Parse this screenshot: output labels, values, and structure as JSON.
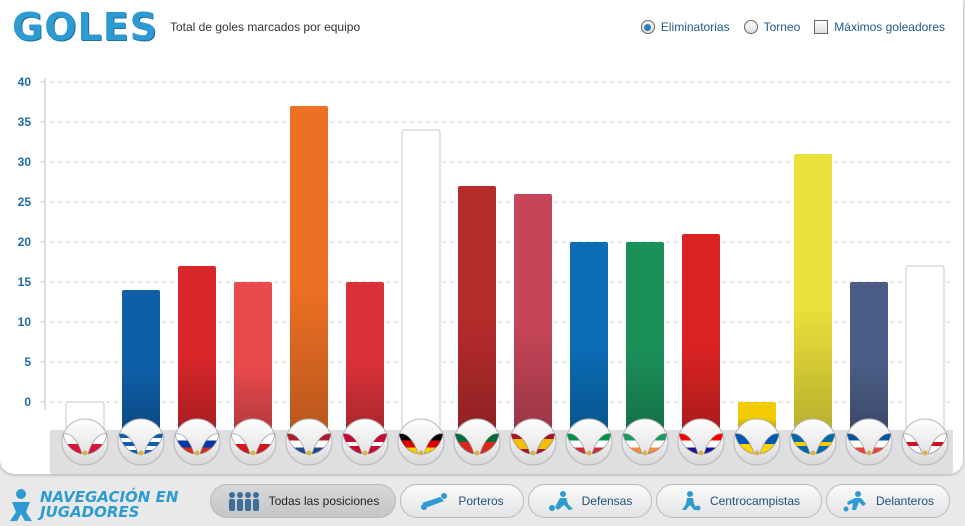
{
  "header": {
    "logo": "GOLES",
    "subtitle": "Total de goles marcados por equipo",
    "options": [
      {
        "label": "Eliminatorias",
        "kind": "radio",
        "selected": true
      },
      {
        "label": "Torneo",
        "kind": "radio",
        "selected": false
      },
      {
        "label": "Máximos goleadores",
        "kind": "checkbox",
        "selected": false
      }
    ]
  },
  "chart_data": {
    "type": "bar",
    "ylim": [
      0,
      40
    ],
    "yticks": [
      0,
      5,
      10,
      15,
      20,
      25,
      30,
      35,
      40
    ],
    "grid": true,
    "values": [
      0,
      14,
      17,
      15,
      37,
      15,
      34,
      27,
      26,
      20,
      20,
      21,
      0,
      31,
      15,
      17
    ],
    "bar_colors": [
      "#ffffff",
      "#0f5fa8",
      "#d8262a",
      "#ea4a4e",
      "#ee7024",
      "#d9313a",
      "#ffffff",
      "#b62b2c",
      "#c64558",
      "#0a6db6",
      "#1b915a",
      "#dc2323",
      "#f3cc00",
      "#ece03a",
      "#4b5d86",
      "#ffffff"
    ],
    "flag_icons": [
      "poland-flag-icon",
      "greece-flag-icon",
      "russia-flag-icon",
      "czech-republic-flag-icon",
      "netherlands-flag-icon",
      "denmark-flag-icon",
      "germany-flag-icon",
      "portugal-flag-icon",
      "spain-flag-icon",
      "italy-flag-icon",
      "ireland-flag-icon",
      "croatia-flag-icon",
      "ukraine-flag-icon",
      "sweden-flag-icon",
      "france-flag-icon",
      "england-flag-icon"
    ]
  },
  "footer": {
    "logo_line1": "NAVEGACIÓN EN",
    "logo_line2": "JUGADORES",
    "buttons": [
      {
        "label": "Todas las posiciones",
        "icon": "players-icon",
        "active": true
      },
      {
        "label": "Porteros",
        "icon": "goalkeeper-icon",
        "active": false
      },
      {
        "label": "Defensas",
        "icon": "defender-icon",
        "active": false
      },
      {
        "label": "Centrocampistas",
        "icon": "midfielder-icon",
        "active": false
      },
      {
        "label": "Delanteros",
        "icon": "forward-icon",
        "active": false
      }
    ]
  }
}
